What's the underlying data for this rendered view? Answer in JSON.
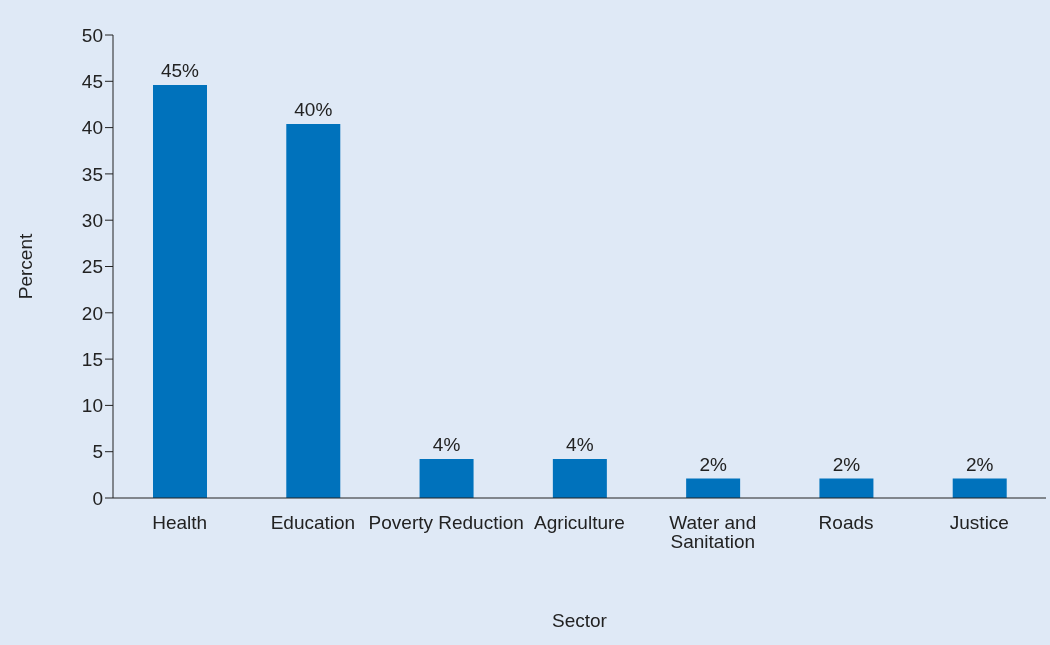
{
  "chart_data": {
    "type": "bar",
    "xlabel": "Sector",
    "ylabel": "Percent",
    "categories": [
      "Health",
      "Education",
      "Poverty Reduction",
      "Agriculture",
      "Water and Sanitation",
      "Roads",
      "Justice"
    ],
    "values": [
      44.6,
      40.4,
      4.2,
      4.2,
      2.1,
      2.1,
      2.1
    ],
    "value_labels": [
      "45%",
      "40%",
      "4%",
      "4%",
      "2%",
      "2%",
      "2%"
    ],
    "color": "#0072bc",
    "ylim": [
      0,
      50
    ],
    "yticks": [
      0,
      5,
      10,
      15,
      20,
      25,
      30,
      35,
      40,
      45,
      50
    ],
    "grid": false,
    "legend": false
  }
}
